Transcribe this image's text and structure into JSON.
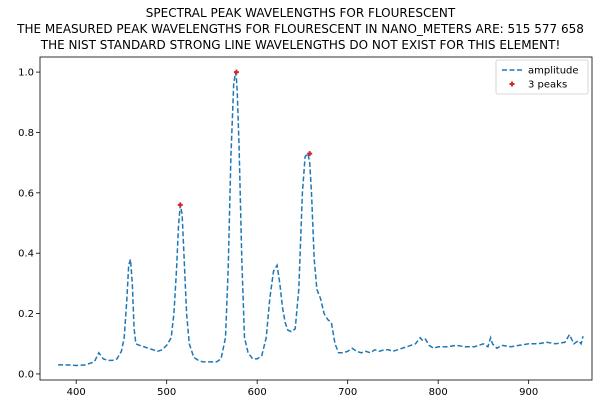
{
  "chart_data": {
    "type": "line",
    "title_lines": [
      "SPECTRAL PEAK WAVELENGTHS FOR FLOURESCENT",
      "THE MEASURED PEAK WAVELENGTHS FOR FLOURESCENT IN NANO_METERS ARE: 515 577 658",
      "THE NIST STANDARD STRONG LINE WAVELENGTHS DO NOT EXIST FOR THIS ELEMENT!"
    ],
    "xlabel": "",
    "ylabel": "",
    "xlim": [
      360,
      970
    ],
    "ylim": [
      -0.02,
      1.05
    ],
    "xticks": [
      400,
      500,
      600,
      700,
      800,
      900
    ],
    "yticks": [
      0.0,
      0.2,
      0.4,
      0.6,
      0.8,
      1.0
    ],
    "ytick_labels": [
      "0.0",
      "0.2",
      "0.4",
      "0.6",
      "0.8",
      "1.0"
    ],
    "grid": false,
    "legend_position": "top-right",
    "colors": {
      "line": "#1f77b4",
      "peaks": "#d62728"
    },
    "series": [
      {
        "name": "amplitude",
        "style": "dashed",
        "x": [
          380,
          390,
          400,
          410,
          420,
          425,
          430,
          435,
          440,
          445,
          450,
          453,
          456,
          458,
          460,
          462,
          464,
          466,
          470,
          480,
          490,
          495,
          500,
          505,
          508,
          511,
          513,
          515,
          517,
          519,
          522,
          525,
          530,
          535,
          540,
          545,
          550,
          555,
          560,
          565,
          568,
          571,
          574,
          576,
          577,
          578,
          580,
          583,
          586,
          590,
          595,
          600,
          605,
          610,
          614,
          618,
          622,
          625,
          628,
          631,
          634,
          638,
          642,
          646,
          650,
          653,
          656,
          658,
          660,
          663,
          666,
          670,
          674,
          678,
          682,
          686,
          690,
          695,
          700,
          705,
          710,
          715,
          720,
          725,
          730,
          735,
          740,
          745,
          750,
          755,
          760,
          765,
          770,
          775,
          780,
          783,
          786,
          790,
          795,
          800,
          810,
          820,
          830,
          840,
          850,
          855,
          858,
          860,
          865,
          870,
          880,
          890,
          900,
          910,
          920,
          930,
          940,
          945,
          950,
          955,
          958,
          960
        ],
        "y": [
          0.03,
          0.03,
          0.028,
          0.03,
          0.04,
          0.07,
          0.05,
          0.045,
          0.045,
          0.05,
          0.075,
          0.12,
          0.25,
          0.36,
          0.38,
          0.3,
          0.15,
          0.1,
          0.095,
          0.085,
          0.075,
          0.08,
          0.095,
          0.12,
          0.2,
          0.35,
          0.49,
          0.56,
          0.53,
          0.4,
          0.2,
          0.1,
          0.055,
          0.045,
          0.04,
          0.04,
          0.04,
          0.04,
          0.05,
          0.12,
          0.35,
          0.72,
          0.96,
          1.0,
          0.98,
          0.93,
          0.75,
          0.38,
          0.12,
          0.07,
          0.05,
          0.05,
          0.06,
          0.12,
          0.25,
          0.34,
          0.36,
          0.3,
          0.22,
          0.17,
          0.145,
          0.14,
          0.15,
          0.28,
          0.6,
          0.72,
          0.73,
          0.7,
          0.6,
          0.38,
          0.28,
          0.25,
          0.2,
          0.18,
          0.17,
          0.1,
          0.07,
          0.07,
          0.075,
          0.085,
          0.075,
          0.07,
          0.075,
          0.07,
          0.08,
          0.075,
          0.08,
          0.08,
          0.075,
          0.08,
          0.085,
          0.09,
          0.095,
          0.1,
          0.12,
          0.11,
          0.115,
          0.095,
          0.085,
          0.09,
          0.09,
          0.095,
          0.09,
          0.09,
          0.1,
          0.09,
          0.12,
          0.1,
          0.085,
          0.095,
          0.09,
          0.095,
          0.1,
          0.1,
          0.105,
          0.1,
          0.105,
          0.13,
          0.1,
          0.11,
          0.1,
          0.125
        ]
      },
      {
        "name": "3 peaks",
        "style": "markers",
        "x": [
          515,
          577,
          658
        ],
        "y": [
          0.56,
          1.0,
          0.73
        ]
      }
    ]
  }
}
